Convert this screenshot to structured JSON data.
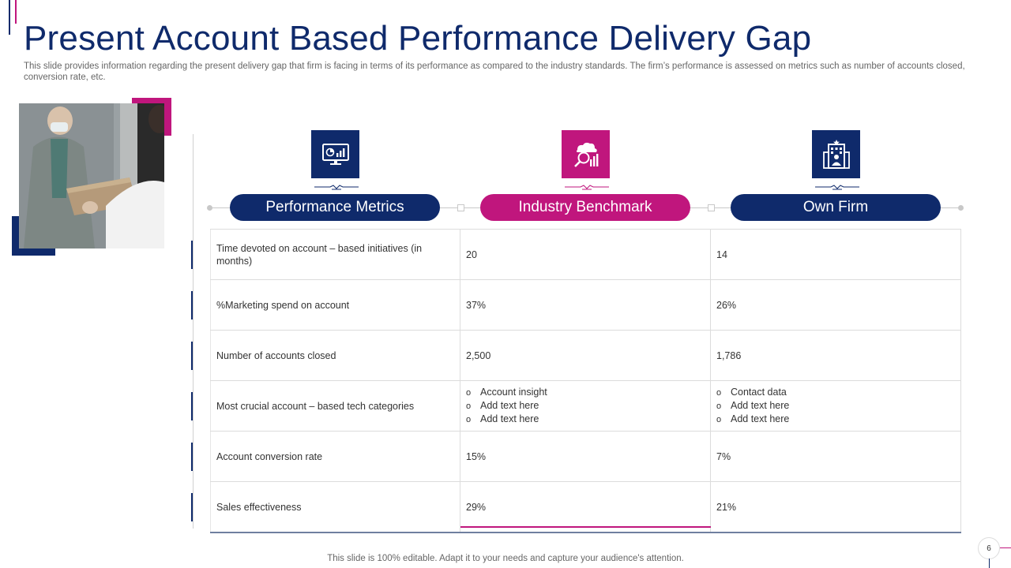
{
  "title": "Present Account Based Performance Delivery Gap",
  "subtitle": "This slide provides information regarding the present delivery gap that firm is facing in terms of its performance as compared to the industry standards. The firm’s performance is assessed on metrics such as number of accounts closed, conversion rate, etc.",
  "colors": {
    "navy": "#0f2a6b",
    "pink": "#c0167d"
  },
  "photo": {
    "icon": "delivery-person-photo"
  },
  "columns": [
    {
      "label": "Performance Metrics",
      "icon": "monitor-chart-icon"
    },
    {
      "label": "Industry Benchmark",
      "icon": "analytics-search-icon"
    },
    {
      "label": "Own Firm",
      "icon": "building-icon"
    }
  ],
  "rows": [
    {
      "metric": "Time devoted  on account – based initiatives (in months)",
      "benchmark": "20",
      "own": "14"
    },
    {
      "metric": "%Marketing  spend on account",
      "benchmark": "37%",
      "own": "26%"
    },
    {
      "metric": "Number  of accounts closed",
      "benchmark": "2,500",
      "own": "1,786"
    },
    {
      "metric": "Most crucial account – based tech categories",
      "benchmark_list": [
        "Account insight",
        "Add text here",
        "Add text here"
      ],
      "own_list": [
        "Contact data",
        "Add text here",
        "Add text here"
      ]
    },
    {
      "metric": "Account conversion  rate",
      "benchmark": "15%",
      "own": "7%"
    },
    {
      "metric": "Sales effectiveness",
      "benchmark": "29%",
      "own": "21%"
    }
  ],
  "footer": "This slide is 100% editable. Adapt it to your needs and capture your audience's attention.",
  "page_number": "6"
}
